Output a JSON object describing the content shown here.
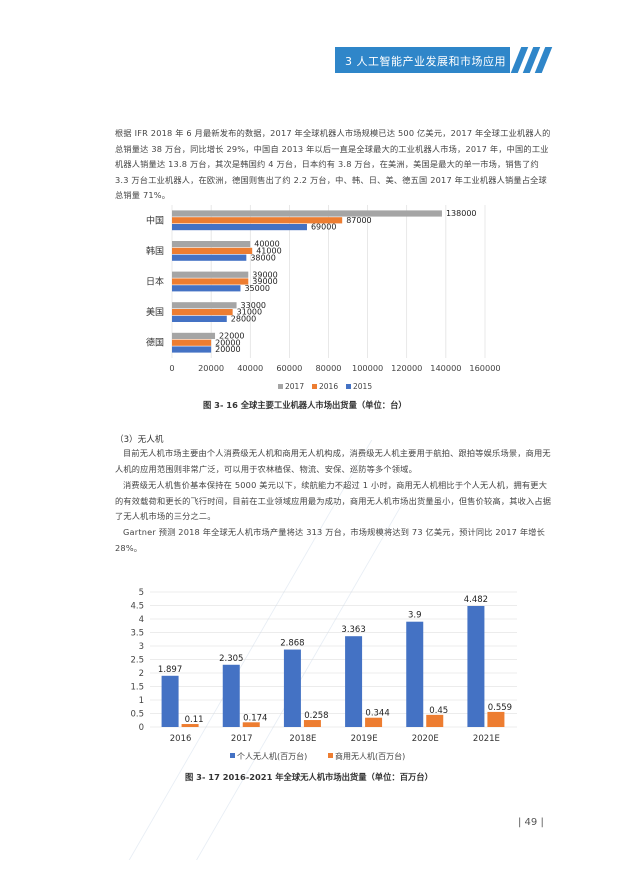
{
  "header": {
    "section_title": "3 人工智能产业发展和市场应用"
  },
  "paragraphs": {
    "p1": "根据 IFR 2018 年 6 月最新发布的数据，2017 年全球机器人市场规模已达 500 亿美元，2017 年全球工业机器人的总销量达 38 万台，同比增长 29%，中国自 2013 年以后一直是全球最大的工业机器人市场，2017 年，中国的工业机器人销量达 13.8 万台，其次是韩国约 4 万台，日本约有 3.8 万台，在美洲，美国是最大的单一市场，销售了约 3.3 万台工业机器人，在欧洲，德国则售出了约 2.2 万台，中、韩、日、美、德五国 2017 年工业机器人销量占全球总销量 71%。",
    "drone_heading": "（3）无人机",
    "p2": "目前无人机市场主要由个人消费级无人机和商用无人机构成，消费级无人机主要用于航拍、跟拍等娱乐场景，商用无人机的应用范围则非常广泛，可以用于农林植保、物流、安保、巡防等多个领域。",
    "p3": "消费级无人机售价基本保持在 5000 美元以下，续航能力不超过 1 小时，商用无人机相比于个人无人机，拥有更大的有效载荷和更长的飞行时间，目前在工业领域应用最为成功，商用无人机市场出货量虽小，但售价较高，其收入占据了无人机市场的三分之二。",
    "p4": "Gartner 预测 2018 年全球无人机市场产量将达 313 万台，市场规模将达到 73 亿美元，预计同比 2017 年增长 28%。"
  },
  "captions": {
    "fig16": "图 3- 16  全球主要工业机器人市场出货量（单位：台）",
    "fig17": "图 3- 17  2016-2021 年全球无人机市场出货量（单位：百万台）"
  },
  "footer": {
    "page_number": "| 49 |"
  },
  "chart_data": [
    {
      "type": "bar",
      "orientation": "horizontal",
      "categories": [
        "中国",
        "韩国",
        "日本",
        "美国",
        "德国"
      ],
      "series": [
        {
          "name": "2017",
          "color": "#a5a5a5",
          "values": [
            138000,
            40000,
            39000,
            33000,
            22000
          ]
        },
        {
          "name": "2016",
          "color": "#ed7d31",
          "values": [
            87000,
            41000,
            39000,
            31000,
            20000
          ]
        },
        {
          "name": "2015",
          "color": "#4472c4",
          "values": [
            69000,
            38000,
            35000,
            28000,
            20000
          ]
        }
      ],
      "xlim": [
        0,
        160000
      ],
      "xticks": [
        0,
        20000,
        40000,
        60000,
        80000,
        100000,
        120000,
        140000,
        160000
      ],
      "legend": "bottom",
      "grid": true
    },
    {
      "type": "bar",
      "categories": [
        "2016",
        "2017",
        "2018E",
        "2019E",
        "2020E",
        "2021E"
      ],
      "category_labels_shown": [
        "2016",
        "2017",
        "2018E",
        "2019E",
        "2020E",
        "2021E"
      ],
      "series": [
        {
          "name": "个人无人机(百万台)",
          "color": "#4472c4",
          "values": [
            1.897,
            2.305,
            2.868,
            3.363,
            3.9,
            4.482
          ],
          "labels": [
            "1.897",
            "2.305",
            "2.868",
            "3.363",
            "3.9",
            "4.482"
          ]
        },
        {
          "name": "商用无人机(百万台)",
          "color": "#ed7d31",
          "values": [
            0.11,
            0.174,
            0.258,
            0.344,
            0.45,
            0.559
          ],
          "labels": [
            "0.11",
            "0.174",
            "0.258",
            "0.344",
            "0.45",
            "0.559"
          ]
        }
      ],
      "ylim": [
        0,
        5
      ],
      "yticks": [
        "0",
        "0.5",
        "1",
        "1.5",
        "2",
        "2.5",
        "3",
        "3.5",
        "4",
        "4.5",
        "5"
      ],
      "legend": "bottom",
      "grid": true
    }
  ]
}
